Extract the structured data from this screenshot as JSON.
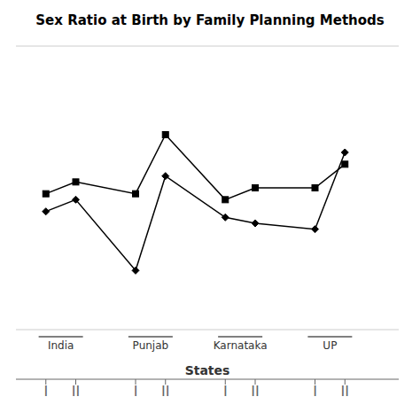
{
  "chart_data": {
    "type": "line",
    "title": "Sex Ratio at Birth by Family Planning Methods",
    "x_label": "States",
    "x": [
      1,
      2,
      4,
      5,
      7,
      8,
      10,
      11
    ],
    "series": [
      {
        "color": "#000000",
        "marker": "diamond",
        "values": [
          920,
          930,
          870,
          950,
          915,
          910,
          905,
          970
        ]
      },
      {
        "color": "#000000",
        "marker": "square",
        "values": [
          935,
          945,
          935,
          985,
          930,
          940,
          940,
          960
        ]
      }
    ],
    "xlim": [
      0.0,
      12.8
    ],
    "xticks": [
      {
        "value": 1,
        "label": "I"
      },
      {
        "value": 2,
        "label": "II"
      },
      {
        "value": 4,
        "label": "I"
      },
      {
        "value": 5,
        "label": "II"
      },
      {
        "value": 7,
        "label": "I"
      },
      {
        "value": 8,
        "label": "II"
      },
      {
        "value": 10,
        "label": "I"
      },
      {
        "value": 11,
        "label": "II"
      }
    ],
    "ylim": [
      820,
      1060
    ],
    "yticks": [
      820,
      841.8181818181818,
      863.6363636363636,
      885.4545454545455,
      907.2727272727273,
      929.0909090909091,
      950.9090909090909,
      972.7272727272727,
      994.5454545454545,
      1016.3636363636364,
      1038.1818181818182,
      1060
    ],
    "grid": true,
    "tick_labels": "x",
    "annotations": [
      {
        "text": "India",
        "x": 1.5
      },
      {
        "text": "Punjab",
        "x": 4.5
      },
      {
        "text": "Karnataka",
        "x": 7.5
      },
      {
        "text": "UP",
        "x": 10.5
      }
    ]
  }
}
